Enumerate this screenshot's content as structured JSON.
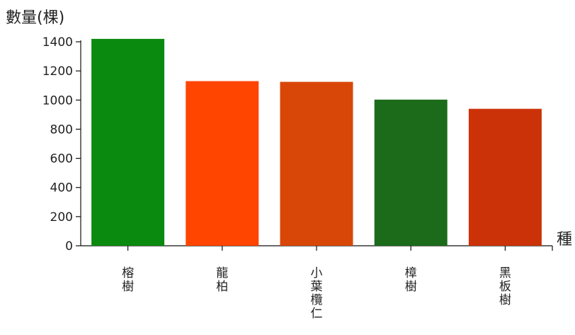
{
  "chart_data": {
    "type": "bar",
    "ylabel": "數量(棵)",
    "xlabel": "種",
    "categories": [
      "榕樹",
      "龍柏",
      "小葉欖仁",
      "樟樹",
      "黑板樹"
    ],
    "values": [
      1420,
      1130,
      1125,
      1003,
      940
    ],
    "colors": [
      "#0a8a0e",
      "#ff4500",
      "#d84708",
      "#1b6b1b",
      "#cc3208"
    ],
    "ylim": [
      0,
      1400
    ],
    "yticks": [
      0,
      200,
      400,
      600,
      800,
      1000,
      1200,
      1400
    ],
    "grid": false
  }
}
